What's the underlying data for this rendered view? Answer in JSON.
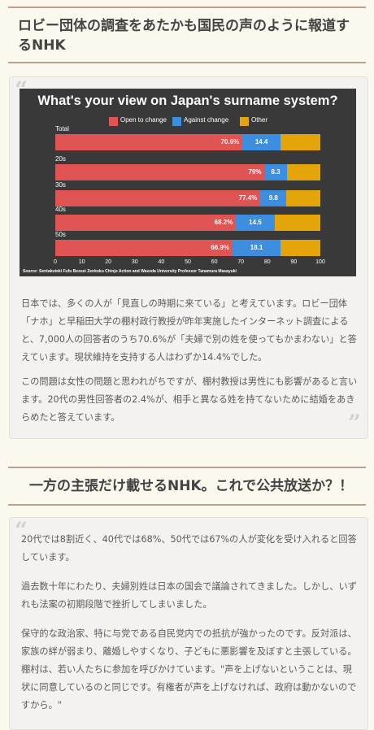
{
  "section1": {
    "heading": "ロビー団体の調査をあたかも国民の声のように報道するNHK",
    "paragraphs": [
      "日本では、多くの人が「見直しの時期に来ている」と考えています。ロビー団体「ナホ」と早稲田大学の棚村政行教授が昨年実施したインターネット調査によると、7,000人の回答者のうち70.6%が「夫婦で別の姓を使ってもかまわない」と答えています。現状維持を支持する人はわずか14.4%でした。",
      "この問題は女性の問題と思われがちですが、棚村教授は男性にも影響があると言います。20代の男性回答者の2.4%が、相手と異なる姓を持てないために結婚をあきらめたと答えています。"
    ]
  },
  "section2": {
    "heading": "一方の主張だけ載せるNHK。これで公共放送か？！",
    "paragraphs": [
      "20代では8割近く、40代では68%、50代では67%の人が変化を受け入れると回答しています。",
      "過去数十年にわたり、夫婦別姓は日本の国会で議論されてきました。しかし、いずれも法案の初期段階で挫折してしまいました。",
      "保守的な政治家、特に与党である自民党内での抵抗が強かったのです。反対派は、家族の絆が弱まり、離婚しやすくなり、子どもに悪影響を及ぼすと主張している。棚村は、若い人たちに参加を呼びかけています。\"声を上げないということは、現状に同意しているのと同じです。有権者が声を上げなければ、政府は動かないのですから。\""
    ]
  },
  "quote_glyph_open": "“",
  "quote_glyph_close": "”",
  "chart_data": {
    "type": "bar",
    "orientation": "horizontal-stacked",
    "title": "What's your view on Japan's surname system?",
    "categories": [
      "Total",
      "20s",
      "30s",
      "40s",
      "50s"
    ],
    "series": [
      {
        "name": "Open to change",
        "color": "#e05454",
        "values": [
          70.6,
          79,
          77.4,
          68.2,
          66.9
        ],
        "labels": [
          "70.6%",
          "79%",
          "77.4%",
          "68.2%",
          "66.9%"
        ]
      },
      {
        "name": "Against change",
        "color": "#3d8ede",
        "values": [
          14.4,
          8.3,
          9.8,
          14.5,
          18.1
        ],
        "labels": [
          "14.4",
          "8.3",
          "9.8",
          "14.5",
          "18.1"
        ]
      },
      {
        "name": "Other",
        "color": "#e4a50a",
        "values": [
          15,
          12.7,
          12.8,
          17.3,
          15
        ],
        "labels": [
          "",
          "",
          "",
          "",
          ""
        ]
      }
    ],
    "xlim": [
      0,
      100
    ],
    "xticks": [
      "0",
      "10",
      "20",
      "30",
      "40",
      "50",
      "60",
      "70",
      "80",
      "90",
      "100"
    ],
    "legend": "top",
    "source": "Source: Sentakuteki Fufu Bessei Zenkoku Chinjo Action and Waseda University Professor Tanamura Masayuki",
    "background": "#393939"
  }
}
